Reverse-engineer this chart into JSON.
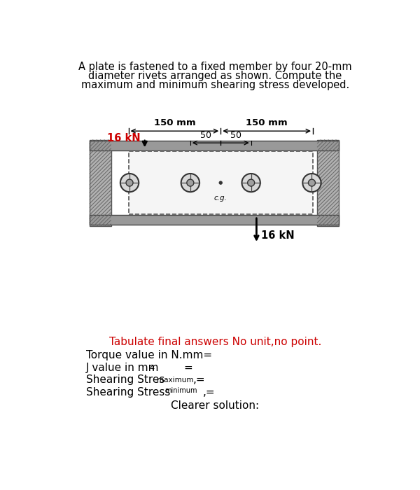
{
  "title_line1": "A plate is fastened to a fixed member by four 20-mm",
  "title_line2": "diameter rivets arranged as shown. Compute the",
  "title_line3": "maximum and minimum shearing stress developed.",
  "dim_150_left": "150 mm",
  "dim_150_right": "150 mm",
  "dim_50_left": "50",
  "dim_50_right": "50",
  "force_left": "16 kN",
  "force_right": "16 kN",
  "tabulate_text": "Tabulate final answers No unit,no point.",
  "torque_label": "Torque value in N.mm=",
  "j_label_main": "J value in mm",
  "j_superscript": "4",
  "j_equals": "=",
  "shear_max_main": "Shearing Stres ",
  "shear_max_sub": "maximum",
  "shear_max_comma_eq": ",=",
  "shear_min_main": "Shearing Stress",
  "shear_min_sub": "minimum",
  "shear_min_comma_eq": ",=",
  "clearer": "Clearer solution:",
  "cg_label": "c.g.",
  "bg_color": "#ffffff",
  "text_color": "#000000",
  "red_color": "#cc0000",
  "gray_wall": "#b0b0b0",
  "gray_bar": "#999999",
  "plate_fill": "#e0e0e0",
  "rivet_outer_fill": "#d8d8d8",
  "rivet_inner_fill": "#a0a0a0"
}
